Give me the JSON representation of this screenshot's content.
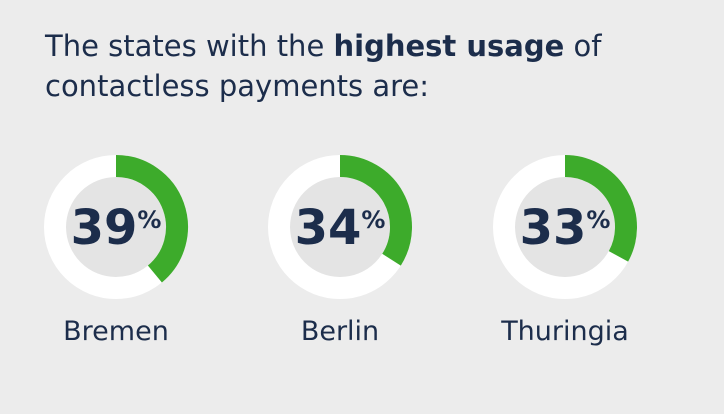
{
  "chart_data": {
    "type": "gauge",
    "title": [
      "The states with the",
      "highest usage",
      "of contactless payments are:"
    ],
    "title_bold": [
      false,
      true,
      false
    ],
    "categories": [
      "Bremen",
      "Berlin",
      "Thuringia"
    ],
    "values": [
      39,
      34,
      33
    ],
    "unit": "%",
    "ylim": [
      0,
      100
    ],
    "color": "#3dab2b"
  }
}
